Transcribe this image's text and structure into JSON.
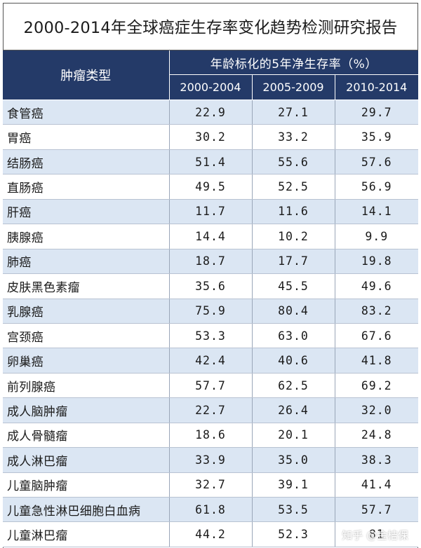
{
  "title": "2000-2014年全球癌症生存率变化趋势检测研究报告",
  "header": {
    "type_label": "肿瘤类型",
    "group_label": "年龄标化的5年净生存率（%）",
    "periods": [
      "2000-2004",
      "2005-2009",
      "2010-2014"
    ]
  },
  "rows": [
    {
      "name": "食管癌",
      "v1": "22.9",
      "v2": "27.1",
      "v3": "29.7"
    },
    {
      "name": "胃癌",
      "v1": "30.2",
      "v2": "33.2",
      "v3": "35.9"
    },
    {
      "name": "结肠癌",
      "v1": "51.4",
      "v2": "55.6",
      "v3": "57.6"
    },
    {
      "name": "直肠癌",
      "v1": "49.5",
      "v2": "52.5",
      "v3": "56.9"
    },
    {
      "name": "肝癌",
      "v1": "11.7",
      "v2": "11.6",
      "v3": "14.1"
    },
    {
      "name": "胰腺癌",
      "v1": "14.4",
      "v2": "10.2",
      "v3": "9.9"
    },
    {
      "name": "肺癌",
      "v1": "18.7",
      "v2": "17.7",
      "v3": "19.8"
    },
    {
      "name": "皮肤黑色素瘤",
      "v1": "35.6",
      "v2": "45.5",
      "v3": "49.6"
    },
    {
      "name": "乳腺癌",
      "v1": "75.9",
      "v2": "80.4",
      "v3": "83.2"
    },
    {
      "name": "宫颈癌",
      "v1": "53.3",
      "v2": "63.0",
      "v3": "67.6"
    },
    {
      "name": "卵巢癌",
      "v1": "42.4",
      "v2": "40.6",
      "v3": "41.8"
    },
    {
      "name": "前列腺癌",
      "v1": "57.7",
      "v2": "62.5",
      "v3": "69.2"
    },
    {
      "name": "成人脑肿瘤",
      "v1": "22.7",
      "v2": "26.4",
      "v3": "32.0"
    },
    {
      "name": "成人骨髓瘤",
      "v1": "18.6",
      "v2": "20.1",
      "v3": "24.8"
    },
    {
      "name": "成人淋巴瘤",
      "v1": "33.9",
      "v2": "35.0",
      "v3": "38.3"
    },
    {
      "name": "儿童脑肿瘤",
      "v1": "32.7",
      "v2": "39.1",
      "v3": "41.4"
    },
    {
      "name": "儿童急性淋巴细胞白血病",
      "v1": "61.8",
      "v2": "53.5",
      "v3": "57.7"
    },
    {
      "name": "儿童淋巴瘤",
      "v1": "44.2",
      "v2": "52.3",
      "v3": "81"
    }
  ],
  "watermark": "知乎 @金桔保"
}
